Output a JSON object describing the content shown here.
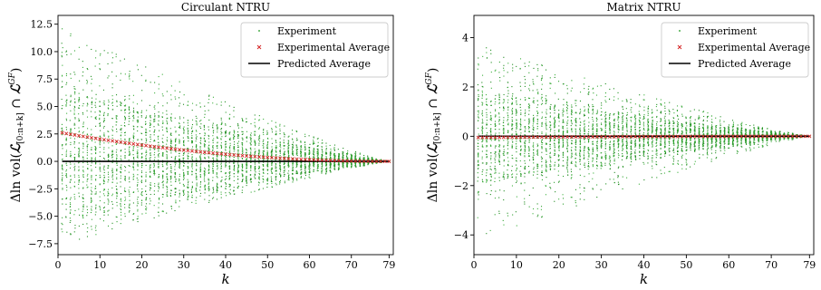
{
  "chart_data": [
    {
      "type": "scatter",
      "title": "Circulant NTRU",
      "xlabel": "k",
      "ylabel": "Δln vol(ℒ[0:n+k] ∩ ℒGF)",
      "ylabel_parts": {
        "main": "Δln vol(",
        "L": "ℒ",
        "sub": "[0:n+k]",
        "cap": " ∩ ",
        "L2": "ℒ",
        "sup": "GF",
        "close": ")"
      },
      "xlim": [
        0,
        80
      ],
      "ylim": [
        -8.5,
        13.3
      ],
      "xticks": [
        0,
        10,
        20,
        30,
        40,
        50,
        60,
        70,
        79
      ],
      "xtick_labels": [
        "0",
        "10",
        "20",
        "30",
        "40",
        "50",
        "60",
        "70",
        "79"
      ],
      "yticks": [
        -7.5,
        -5.0,
        -2.5,
        0.0,
        2.5,
        5.0,
        7.5,
        10.0,
        12.5
      ],
      "ytick_labels": [
        "−7.5",
        "−5.0",
        "−2.5",
        "0.0",
        "2.5",
        "5.0",
        "7.5",
        "10.0",
        "12.5"
      ],
      "grid": false,
      "legend_position": "top-right",
      "envelope": {
        "k_max": 79,
        "upper_at_0": 12.3,
        "lower_at_0": -7.8,
        "core_upper_at_0": 6.5,
        "core_lower_at_0": -5.0
      },
      "series": [
        {
          "name": "Experiment",
          "kind": "scatter-dots",
          "color": "#2ca02c"
        },
        {
          "name": "Experimental Average",
          "kind": "x-markers",
          "color": "#d62728",
          "k_from": 1,
          "k_to": 79,
          "start_value": 2.6,
          "end_value": 0.0
        },
        {
          "name": "Predicted Average",
          "kind": "line",
          "color": "#000000",
          "x": [
            1,
            79
          ],
          "y": [
            0.0,
            0.0
          ]
        }
      ]
    },
    {
      "type": "scatter",
      "title": "Matrix NTRU",
      "xlabel": "k",
      "ylabel": "Δln vol(ℒ[0:n+k] ∩ ℒGF)",
      "ylabel_parts": {
        "main": "Δln vol(",
        "L": "ℒ",
        "sub": "[0:n+k]",
        "cap": " ∩ ",
        "L2": "ℒ",
        "sup": "GF",
        "close": ")"
      },
      "xlim": [
        0,
        80
      ],
      "ylim": [
        -4.8,
        4.9
      ],
      "xticks": [
        0,
        10,
        20,
        30,
        40,
        50,
        60,
        70,
        79
      ],
      "xtick_labels": [
        "0",
        "10",
        "20",
        "30",
        "40",
        "50",
        "60",
        "70",
        "79"
      ],
      "yticks": [
        -4,
        -2,
        0,
        2,
        4
      ],
      "ytick_labels": [
        "−4",
        "−2",
        "0",
        "2",
        "4"
      ],
      "grid": false,
      "legend_position": "top-right",
      "envelope": {
        "k_max": 79,
        "upper_at_0": 3.8,
        "lower_at_0": -4.3,
        "core_upper_at_0": 1.8,
        "core_lower_at_0": -1.9
      },
      "series": [
        {
          "name": "Experiment",
          "kind": "scatter-dots",
          "color": "#2ca02c"
        },
        {
          "name": "Experimental Average",
          "kind": "x-markers",
          "color": "#d62728",
          "k_from": 1,
          "k_to": 79,
          "start_value": -0.05,
          "end_value": 0.0
        },
        {
          "name": "Predicted Average",
          "kind": "line",
          "color": "#000000",
          "x": [
            1,
            79
          ],
          "y": [
            0.0,
            0.0
          ]
        }
      ]
    }
  ]
}
